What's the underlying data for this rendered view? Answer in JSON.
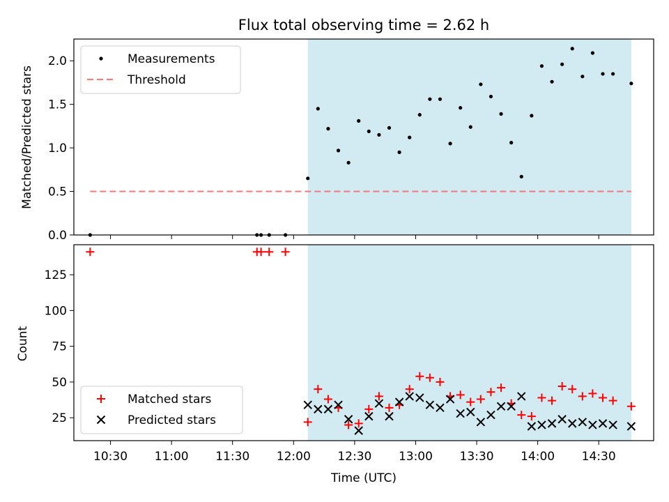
{
  "chart_data": {
    "title": "Flux total observing time = 2.62 h",
    "xlabel": "Time (UTC)",
    "x_ticks": [
      "10:30",
      "11:00",
      "11:30",
      "12:00",
      "12:30",
      "13:00",
      "13:30",
      "14:00",
      "14:30"
    ],
    "xlim": [
      "10:12",
      "14:57"
    ],
    "shaded_interval": [
      "12:07",
      "14:46"
    ],
    "shade_color": "#add8e6",
    "panels": [
      {
        "type": "scatter",
        "ylabel": "Matched/Predicted stars",
        "ylim": [
          0,
          2.25
        ],
        "y_ticks": [
          "0.0",
          "0.5",
          "1.0",
          "1.5",
          "2.0"
        ],
        "legend_position": "upper-left",
        "series": [
          {
            "name": "Measurements",
            "marker": "dot",
            "color": "#000000",
            "points": [
              [
                "10:20",
                0
              ],
              [
                "11:42",
                0
              ],
              [
                "11:44",
                0
              ],
              [
                "11:48",
                0
              ],
              [
                "11:56",
                0
              ],
              [
                "12:07",
                0.65
              ],
              [
                "12:12",
                1.45
              ],
              [
                "12:17",
                1.22
              ],
              [
                "12:22",
                0.97
              ],
              [
                "12:27",
                0.83
              ],
              [
                "12:32",
                1.31
              ],
              [
                "12:37",
                1.19
              ],
              [
                "12:42",
                1.15
              ],
              [
                "12:47",
                1.23
              ],
              [
                "12:52",
                0.95
              ],
              [
                "12:57",
                1.12
              ],
              [
                "13:02",
                1.38
              ],
              [
                "13:07",
                1.56
              ],
              [
                "13:12",
                1.56
              ],
              [
                "13:17",
                1.05
              ],
              [
                "13:22",
                1.46
              ],
              [
                "13:27",
                1.24
              ],
              [
                "13:32",
                1.73
              ],
              [
                "13:37",
                1.59
              ],
              [
                "13:42",
                1.39
              ],
              [
                "13:47",
                1.06
              ],
              [
                "13:52",
                0.67
              ],
              [
                "13:57",
                1.37
              ],
              [
                "14:02",
                1.94
              ],
              [
                "14:07",
                1.76
              ],
              [
                "14:12",
                1.96
              ],
              [
                "14:17",
                2.14
              ],
              [
                "14:22",
                1.82
              ],
              [
                "14:27",
                2.09
              ],
              [
                "14:32",
                1.85
              ],
              [
                "14:37",
                1.85
              ],
              [
                "14:46",
                1.74
              ]
            ]
          },
          {
            "name": "Threshold",
            "marker": "dashed-line",
            "color": "#f08080",
            "points": [
              [
                "10:20",
                0.5
              ],
              [
                "14:46",
                0.5
              ]
            ]
          }
        ]
      },
      {
        "type": "scatter",
        "ylabel": "Count",
        "ylim": [
          9,
          146
        ],
        "y_ticks": [
          "25",
          "50",
          "75",
          "100",
          "125"
        ],
        "legend_position": "lower-left",
        "series": [
          {
            "name": "Matched stars",
            "marker": "plus",
            "color": "#ff0000",
            "points": [
              [
                "10:20",
                141
              ],
              [
                "11:42",
                141
              ],
              [
                "11:44",
                141
              ],
              [
                "11:48",
                141
              ],
              [
                "11:56",
                141
              ],
              [
                "12:07",
                22
              ],
              [
                "12:12",
                45
              ],
              [
                "12:17",
                38
              ],
              [
                "12:22",
                32
              ],
              [
                "12:27",
                20
              ],
              [
                "12:32",
                21
              ],
              [
                "12:37",
                31
              ],
              [
                "12:42",
                40
              ],
              [
                "12:47",
                32
              ],
              [
                "12:52",
                34
              ],
              [
                "12:57",
                45
              ],
              [
                "13:02",
                54
              ],
              [
                "13:07",
                53
              ],
              [
                "13:12",
                50
              ],
              [
                "13:17",
                40
              ],
              [
                "13:22",
                41
              ],
              [
                "13:27",
                36
              ],
              [
                "13:32",
                38
              ],
              [
                "13:37",
                43
              ],
              [
                "13:42",
                46
              ],
              [
                "13:47",
                35
              ],
              [
                "13:52",
                27
              ],
              [
                "13:57",
                26
              ],
              [
                "14:02",
                39
              ],
              [
                "14:07",
                37
              ],
              [
                "14:12",
                47
              ],
              [
                "14:17",
                45
              ],
              [
                "14:22",
                40
              ],
              [
                "14:27",
                42
              ],
              [
                "14:32",
                39
              ],
              [
                "14:37",
                37
              ],
              [
                "14:46",
                33
              ]
            ]
          },
          {
            "name": "Predicted stars",
            "marker": "x",
            "color": "#000000",
            "points": [
              [
                "12:07",
                34
              ],
              [
                "12:12",
                31
              ],
              [
                "12:17",
                31
              ],
              [
                "12:22",
                34
              ],
              [
                "12:27",
                24
              ],
              [
                "12:32",
                16
              ],
              [
                "12:37",
                26
              ],
              [
                "12:42",
                35
              ],
              [
                "12:47",
                26
              ],
              [
                "12:52",
                36
              ],
              [
                "12:57",
                40
              ],
              [
                "13:02",
                39
              ],
              [
                "13:07",
                34
              ],
              [
                "13:12",
                32
              ],
              [
                "13:17",
                38
              ],
              [
                "13:22",
                28
              ],
              [
                "13:27",
                29
              ],
              [
                "13:32",
                22
              ],
              [
                "13:37",
                27
              ],
              [
                "13:42",
                33
              ],
              [
                "13:47",
                33
              ],
              [
                "13:52",
                40
              ],
              [
                "13:57",
                19
              ],
              [
                "14:02",
                20
              ],
              [
                "14:07",
                21
              ],
              [
                "14:12",
                24
              ],
              [
                "14:17",
                21
              ],
              [
                "14:22",
                22
              ],
              [
                "14:27",
                20
              ],
              [
                "14:32",
                21
              ],
              [
                "14:37",
                20
              ],
              [
                "14:46",
                19
              ]
            ]
          }
        ]
      }
    ]
  }
}
